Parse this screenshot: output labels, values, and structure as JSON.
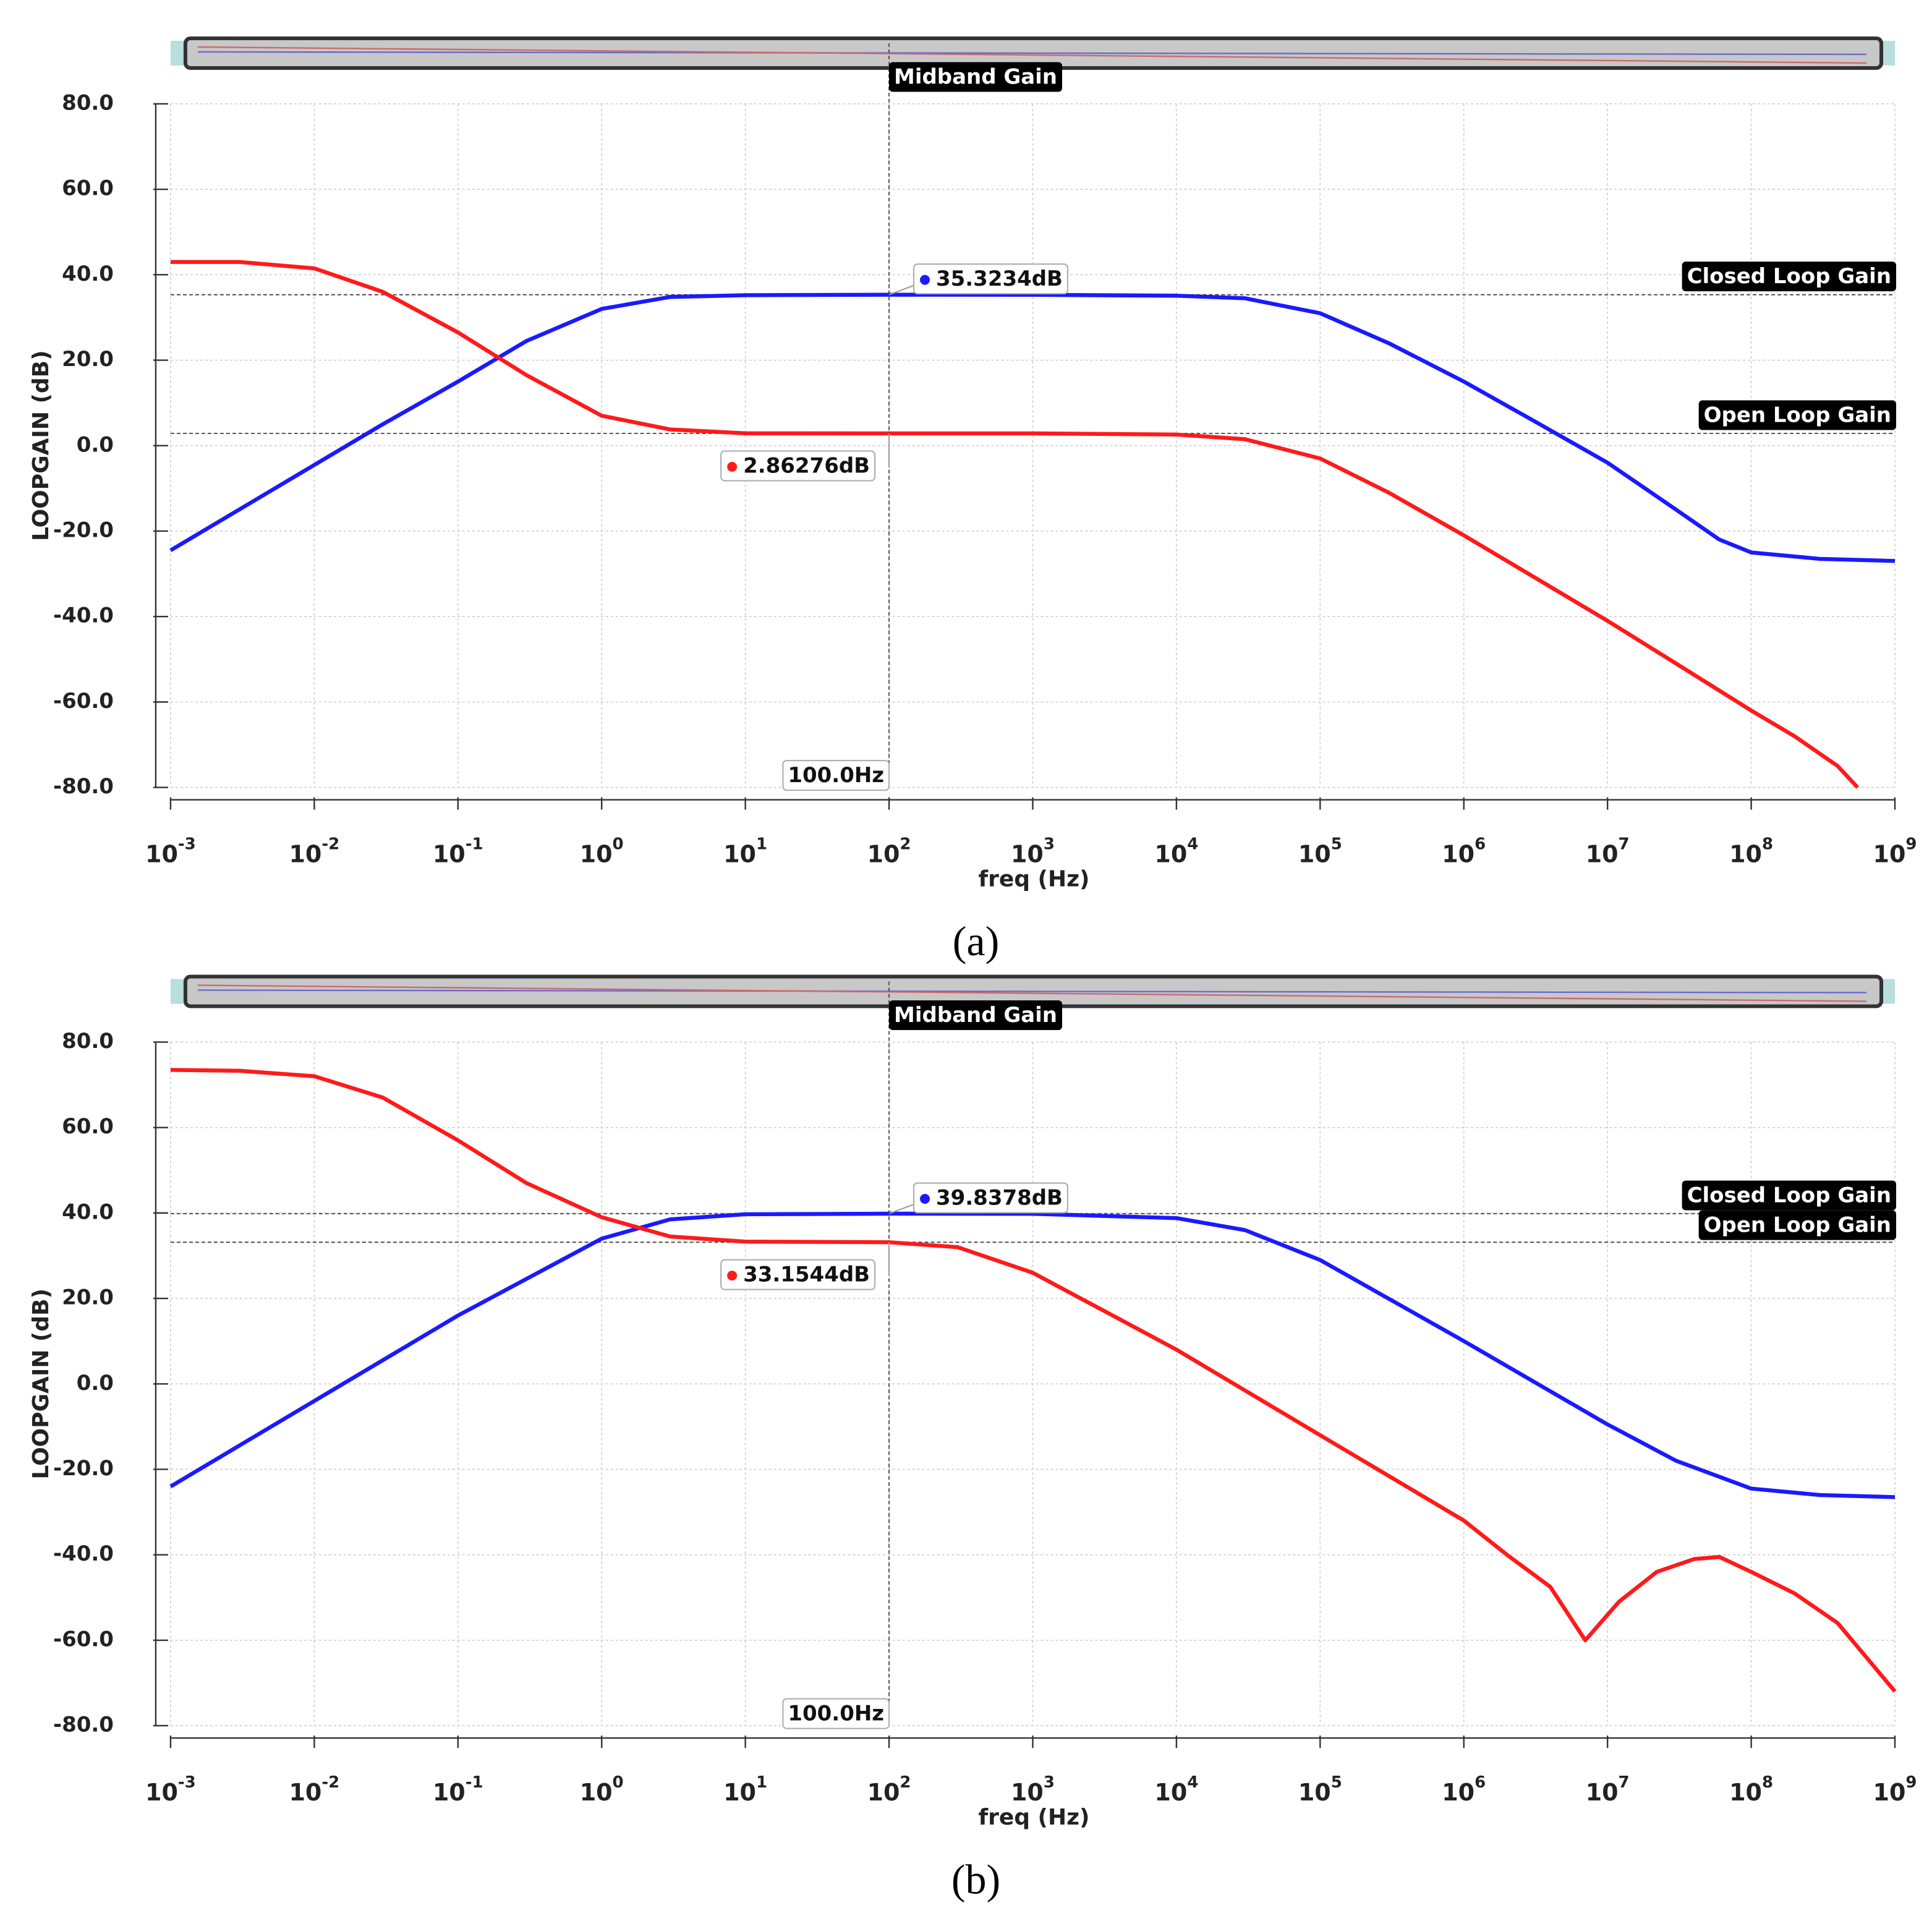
{
  "chart_data": [
    {
      "type": "line",
      "caption": "(a)",
      "xlabel": "freq (Hz)",
      "ylabel": "LOOPGAIN (dB)",
      "xscale": "log",
      "grid": true,
      "xlim": [
        0.001,
        1000000000
      ],
      "ylim": [
        -80,
        80
      ],
      "yticks": [
        {
          "value": 80,
          "label": "80.0"
        },
        {
          "value": 60,
          "label": "60.0"
        },
        {
          "value": 40,
          "label": "40.0"
        },
        {
          "value": 20,
          "label": "20.0"
        },
        {
          "value": 0,
          "label": "0.0"
        },
        {
          "value": -20,
          "label": "-20.0"
        },
        {
          "value": -40,
          "label": "-40.0"
        },
        {
          "value": -60,
          "label": "-60.0"
        },
        {
          "value": -80,
          "label": "-80.0"
        }
      ],
      "xticks": [
        {
          "value": 0.001,
          "label": "10",
          "exponent": "-3"
        },
        {
          "value": 0.01,
          "label": "10",
          "exponent": "-2"
        },
        {
          "value": 0.1,
          "label": "10",
          "exponent": "-1"
        },
        {
          "value": 1,
          "label": "10",
          "exponent": "0"
        },
        {
          "value": 10,
          "label": "10",
          "exponent": "1"
        },
        {
          "value": 100,
          "label": "10",
          "exponent": "2"
        },
        {
          "value": 1000,
          "label": "10",
          "exponent": "3"
        },
        {
          "value": 10000,
          "label": "10",
          "exponent": "4"
        },
        {
          "value": 100000,
          "label": "10",
          "exponent": "5"
        },
        {
          "value": 1000000,
          "label": "10",
          "exponent": "6"
        },
        {
          "value": 10000000,
          "label": "10",
          "exponent": "7"
        },
        {
          "value": 100000000,
          "label": "10",
          "exponent": "8"
        },
        {
          "value": 1000000000,
          "label": "10",
          "exponent": "9"
        }
      ],
      "series": [
        {
          "color": "#1a1aff",
          "x": [
            0.001,
            0.01,
            0.03,
            0.1,
            0.3,
            1,
            3,
            10,
            100,
            1000,
            10000,
            30000,
            100000,
            300000,
            1000000,
            3000000,
            10000000,
            30000000,
            60000000,
            100000000,
            300000000,
            1000000000
          ],
          "values": [
            -24.5,
            -4.5,
            5,
            15,
            24.5,
            32,
            34.8,
            35.2,
            35.32,
            35.3,
            35.1,
            34.5,
            31,
            24,
            15,
            6,
            -4,
            -15,
            -22,
            -25,
            -26.5,
            -27
          ]
        },
        {
          "color": "#ff1a1a",
          "x": [
            0.001,
            0.003,
            0.01,
            0.03,
            0.1,
            0.3,
            1,
            3,
            10,
            100,
            1000,
            10000,
            30000,
            100000,
            300000,
            1000000,
            10000000,
            30000000,
            100000000,
            200000000,
            400000000,
            550000000
          ],
          "values": [
            43,
            43,
            41.5,
            36,
            26.5,
            16.5,
            7,
            3.8,
            2.9,
            2.86,
            2.86,
            2.6,
            1.5,
            -3,
            -11,
            -21,
            -41,
            -51,
            -62,
            -68,
            -75,
            -80
          ]
        }
      ],
      "markers": [
        {
          "name": "Closed Loop Gain",
          "value": 35.3234,
          "label": "35.3234dB",
          "color": "#1a1aff"
        },
        {
          "name": "Open Loop Gain",
          "value": 2.86276,
          "label": "2.86276dB",
          "color": "#ff1a1a"
        }
      ],
      "vmarker": {
        "name": "Midband Gain",
        "value": 100,
        "label": "100.0Hz"
      }
    },
    {
      "type": "line",
      "caption": "(b)",
      "xlabel": "freq (Hz)",
      "ylabel": "LOOPGAIN (dB)",
      "xscale": "log",
      "grid": true,
      "xlim": [
        0.001,
        1000000000
      ],
      "ylim": [
        -80,
        80
      ],
      "yticks": [
        {
          "value": 80,
          "label": "80.0"
        },
        {
          "value": 60,
          "label": "60.0"
        },
        {
          "value": 40,
          "label": "40.0"
        },
        {
          "value": 20,
          "label": "20.0"
        },
        {
          "value": 0,
          "label": "0.0"
        },
        {
          "value": -20,
          "label": "-20.0"
        },
        {
          "value": -40,
          "label": "-40.0"
        },
        {
          "value": -60,
          "label": "-60.0"
        },
        {
          "value": -80,
          "label": "-80.0"
        }
      ],
      "xticks": [
        {
          "value": 0.001,
          "label": "10",
          "exponent": "-3"
        },
        {
          "value": 0.01,
          "label": "10",
          "exponent": "-2"
        },
        {
          "value": 0.1,
          "label": "10",
          "exponent": "-1"
        },
        {
          "value": 1,
          "label": "10",
          "exponent": "0"
        },
        {
          "value": 10,
          "label": "10",
          "exponent": "1"
        },
        {
          "value": 100,
          "label": "10",
          "exponent": "2"
        },
        {
          "value": 1000,
          "label": "10",
          "exponent": "3"
        },
        {
          "value": 10000,
          "label": "10",
          "exponent": "4"
        },
        {
          "value": 100000,
          "label": "10",
          "exponent": "5"
        },
        {
          "value": 1000000,
          "label": "10",
          "exponent": "6"
        },
        {
          "value": 10000000,
          "label": "10",
          "exponent": "7"
        },
        {
          "value": 100000000,
          "label": "10",
          "exponent": "8"
        },
        {
          "value": 1000000000,
          "label": "10",
          "exponent": "9"
        }
      ],
      "series": [
        {
          "color": "#1a1aff",
          "x": [
            0.001,
            0.01,
            0.1,
            1,
            3,
            10,
            100,
            1000,
            10000,
            30000,
            100000,
            1000000,
            10000000,
            30000000,
            100000000,
            300000000,
            1000000000
          ],
          "values": [
            -24,
            -4,
            16,
            34,
            38.5,
            39.7,
            39.84,
            39.8,
            38.8,
            36,
            29,
            10,
            -9.5,
            -18,
            -24.5,
            -26,
            -26.5
          ]
        },
        {
          "color": "#ff1a1a",
          "x": [
            0.001,
            0.003,
            0.01,
            0.03,
            0.1,
            0.3,
            1,
            3,
            10,
            100,
            300,
            1000,
            10000,
            100000,
            1000000,
            2000000,
            4000000,
            7000000,
            12000000,
            22000000,
            40000000,
            60000000,
            100000000,
            200000000,
            400000000,
            1000000000
          ],
          "values": [
            73.5,
            73.3,
            72,
            67,
            57,
            47,
            39,
            34.5,
            33.3,
            33.15,
            32,
            26,
            8,
            -12,
            -32,
            -40,
            -47.5,
            -60,
            -51,
            -44,
            -41,
            -40.5,
            -44,
            -49,
            -56,
            -72
          ]
        }
      ],
      "markers": [
        {
          "name": "Closed Loop Gain",
          "value": 39.8378,
          "label": "39.8378dB",
          "color": "#1a1aff"
        },
        {
          "name": "Open Loop Gain",
          "value": 33.1544,
          "label": "33.1544dB",
          "color": "#ff1a1a"
        }
      ],
      "vmarker": {
        "name": "Midband Gain",
        "value": 100,
        "label": "100.0Hz"
      }
    }
  ]
}
